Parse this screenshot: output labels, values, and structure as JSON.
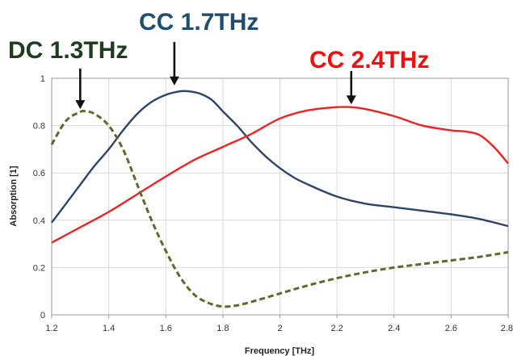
{
  "chart_data": {
    "type": "line",
    "xlabel": "Frequency [THz]",
    "ylabel": "Absorption [1]",
    "xlim": [
      1.2,
      2.8
    ],
    "ylim": [
      0,
      1
    ],
    "x_ticks": [
      "1.2",
      "1.4",
      "1.6",
      "1.8",
      "2",
      "2.2",
      "2.4",
      "2.6",
      "2.8"
    ],
    "y_ticks": [
      "0",
      "0.2",
      "0.4",
      "0.6",
      "0.8",
      "1"
    ],
    "grid": true,
    "series": [
      {
        "key": "cc17",
        "color": "#2d4468",
        "style": "solid",
        "x": [
          1.2,
          1.25,
          1.3,
          1.35,
          1.4,
          1.45,
          1.5,
          1.55,
          1.6,
          1.65,
          1.68,
          1.72,
          1.76,
          1.8,
          1.85,
          1.9,
          1.95,
          2.0,
          2.05,
          2.1,
          2.2,
          2.3,
          2.4,
          2.5,
          2.6,
          2.7,
          2.8
        ],
        "values": [
          0.39,
          0.47,
          0.55,
          0.63,
          0.7,
          0.78,
          0.85,
          0.9,
          0.93,
          0.945,
          0.945,
          0.935,
          0.91,
          0.86,
          0.8,
          0.73,
          0.67,
          0.62,
          0.58,
          0.55,
          0.5,
          0.47,
          0.455,
          0.44,
          0.425,
          0.405,
          0.375
        ]
      },
      {
        "key": "cc24",
        "color": "#ee2222",
        "style": "solid",
        "x": [
          1.2,
          1.3,
          1.4,
          1.5,
          1.6,
          1.7,
          1.8,
          1.9,
          2.0,
          2.1,
          2.2,
          2.25,
          2.3,
          2.4,
          2.5,
          2.6,
          2.65,
          2.7,
          2.75,
          2.8
        ],
        "values": [
          0.305,
          0.37,
          0.435,
          0.51,
          0.585,
          0.655,
          0.71,
          0.765,
          0.83,
          0.865,
          0.878,
          0.878,
          0.87,
          0.84,
          0.8,
          0.78,
          0.775,
          0.76,
          0.71,
          0.64
        ]
      },
      {
        "key": "dc13",
        "color": "#5a6b2e",
        "style": "dashed",
        "x": [
          1.2,
          1.25,
          1.3,
          1.32,
          1.35,
          1.4,
          1.45,
          1.5,
          1.55,
          1.6,
          1.65,
          1.7,
          1.75,
          1.8,
          1.85,
          1.9,
          2.0,
          2.1,
          2.2,
          2.3,
          2.4,
          2.5,
          2.6,
          2.7,
          2.8
        ],
        "values": [
          0.72,
          0.82,
          0.858,
          0.86,
          0.85,
          0.8,
          0.7,
          0.55,
          0.4,
          0.27,
          0.16,
          0.085,
          0.05,
          0.035,
          0.04,
          0.055,
          0.09,
          0.125,
          0.155,
          0.18,
          0.2,
          0.215,
          0.23,
          0.245,
          0.265
        ]
      }
    ],
    "annotations": [
      {
        "text": "DC 1.3THz",
        "color": "#1e3d1e",
        "arrow_x": 1.3,
        "arrow_y": 0.87
      },
      {
        "text": "CC 1.7THz",
        "color": "#1f4e6e",
        "arrow_x": 1.63,
        "arrow_y": 0.97
      },
      {
        "text": "CC 2.4THz",
        "color": "#ee1111",
        "arrow_x": 2.25,
        "arrow_y": 0.89
      }
    ]
  }
}
